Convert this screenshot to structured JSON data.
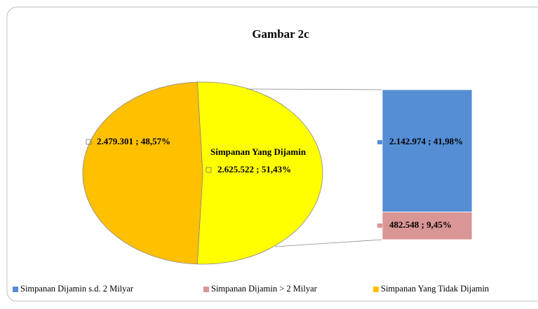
{
  "chart_data": {
    "type": "pie",
    "title": "Gambar 2c",
    "categories": [
      "Simpanan Yang Tidak Dijamin",
      "Simpanan Yang Dijamin"
    ],
    "values": [
      2479301,
      2625522
    ],
    "value_labels": [
      "2.479.301 ; 48,57%",
      "2.625.522 ; 51,43%"
    ],
    "colors": [
      "#ffc000",
      "#ffff00"
    ],
    "breakdown": {
      "type": "bar",
      "categories": [
        "Simpanan Dijamin s.d. 2 Milyar",
        "Simpanan Dijamin > 2 Milyar"
      ],
      "values": [
        2142974,
        482548
      ],
      "value_labels": [
        "2.142.974 ; 41,98%",
        "482.548 ; 9,45%"
      ],
      "colors": [
        "#558ed5",
        "#d99694"
      ]
    }
  }
}
